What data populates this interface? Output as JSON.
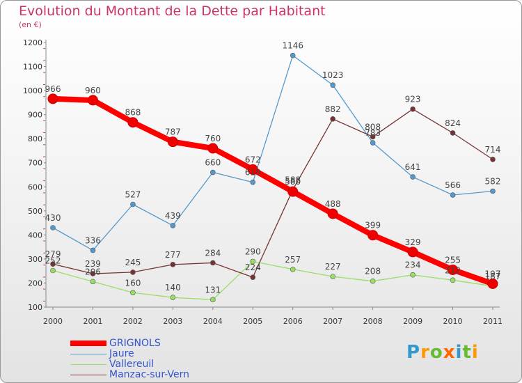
{
  "title": "Evolution du Montant de la Dette par Habitant",
  "subtitle": "(en €)",
  "logo": {
    "text": "Proxiti",
    "letter_colors": [
      "#3399cc",
      "#ff9900",
      "#66bb33",
      "#ff6600",
      "#3399cc",
      "#66bb33",
      "#ff9900"
    ]
  },
  "chart_data": {
    "type": "line",
    "title": "Evolution du Montant de la Dette par Habitant",
    "ylabel": "(en €)",
    "xlabel": "",
    "x": [
      "2000",
      "2001",
      "2002",
      "2003",
      "2004",
      "2005",
      "2006",
      "2007",
      "2008",
      "2009",
      "2010",
      "2011"
    ],
    "y_ticks": [
      "100",
      "200",
      "300",
      "400",
      "500",
      "600",
      "700",
      "800",
      "900",
      "1000",
      "1100",
      "1200"
    ],
    "ylim": [
      100,
      1200
    ],
    "grid": false,
    "legend_position": "bottom-left",
    "series": [
      {
        "name": "GRIGNOLS",
        "color": "#ff0000",
        "values": [
          966,
          960,
          868,
          787,
          760,
          672,
          580,
          488,
          399,
          329,
          255,
          197
        ],
        "labels": [
          "966",
          "960",
          "868",
          "787",
          "760",
          "672",
          "580",
          "488",
          "399",
          "329",
          "255",
          "197"
        ]
      },
      {
        "name": "Jaure",
        "color": "#5599cc",
        "values": [
          430,
          336,
          527,
          439,
          660,
          619,
          1146,
          1023,
          783,
          641,
          566,
          582
        ],
        "labels": [
          "430",
          "336",
          "527",
          "439",
          "660",
          "619",
          "1146",
          "1023",
          "783",
          "641",
          "566",
          "582"
        ]
      },
      {
        "name": "Vallereuil",
        "color": "#99dd66",
        "values": [
          252,
          206,
          160,
          140,
          131,
          290,
          257,
          227,
          208,
          234,
          212,
          187
        ],
        "labels": [
          "252",
          "206",
          "160",
          "140",
          "131",
          "290",
          "257",
          "227",
          "208",
          "234",
          "212",
          "187"
        ]
      },
      {
        "name": "Manzac-sur-Vern",
        "color": "#773333",
        "values": [
          279,
          239,
          245,
          277,
          284,
          224,
          588,
          882,
          808,
          923,
          824,
          714
        ],
        "labels": [
          "279",
          "239",
          "245",
          "277",
          "284",
          "224",
          "588",
          "882",
          "808",
          "923",
          "824",
          "714"
        ]
      }
    ]
  }
}
